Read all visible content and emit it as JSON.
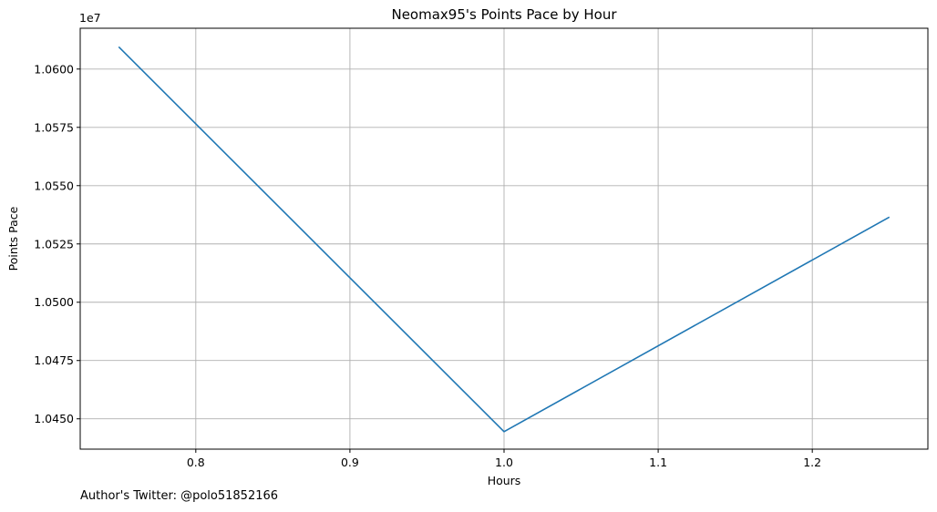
{
  "chart_data": {
    "type": "line",
    "title": "Neomax95's Points Pace by Hour",
    "xlabel": "Hours",
    "ylabel": "Points Pace",
    "y_offset_label": "1e7",
    "xlim": [
      0.725,
      1.275
    ],
    "ylim": [
      10437000,
      10617500
    ],
    "x_ticks": [
      0.8,
      0.9,
      1.0,
      1.1,
      1.2
    ],
    "x_tick_labels": [
      "0.8",
      "0.9",
      "1.0",
      "1.1",
      "1.2"
    ],
    "y_ticks": [
      10450000,
      10475000,
      10500000,
      10525000,
      10550000,
      10575000,
      10600000
    ],
    "y_tick_labels": [
      "1.0450",
      "1.0475",
      "1.0500",
      "1.0525",
      "1.0550",
      "1.0575",
      "1.0600"
    ],
    "grid": true,
    "series": [
      {
        "color": "#1f77b4",
        "x": [
          0.75,
          1.0,
          1.25
        ],
        "y": [
          10609500,
          10444500,
          10536500
        ]
      }
    ]
  },
  "footer": {
    "credit": "Author's Twitter: @polo51852166"
  }
}
